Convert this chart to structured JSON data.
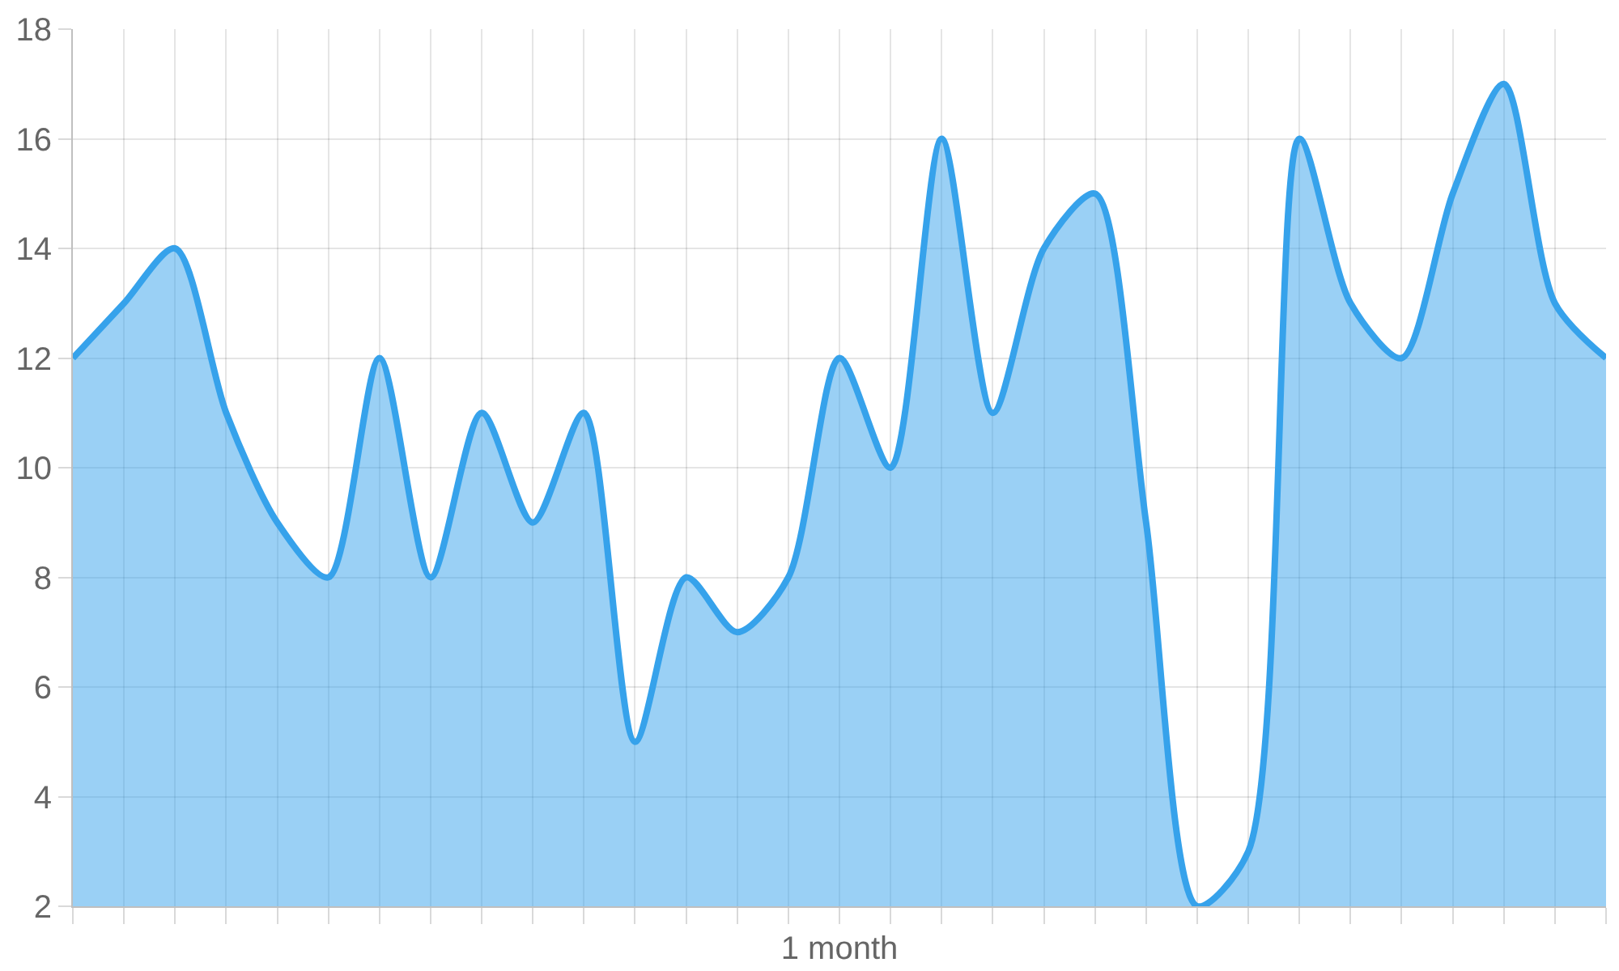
{
  "chart_data": {
    "type": "area",
    "xlabel": "1 month",
    "categories": [
      null,
      null,
      null,
      null,
      null,
      null,
      null,
      null,
      null,
      null,
      null,
      null,
      null,
      null,
      null,
      null,
      null,
      null,
      null,
      null,
      null,
      null,
      null,
      null,
      null,
      null,
      null,
      null,
      null,
      null,
      null
    ],
    "series": [
      {
        "color": "#36a2eb",
        "values": [
          12,
          13,
          14,
          11,
          9,
          8,
          12,
          8,
          11,
          9,
          11,
          5,
          8,
          7,
          8,
          12,
          10,
          16,
          11,
          14,
          15,
          9,
          2,
          3,
          16,
          13,
          12,
          15,
          17,
          13,
          12
        ]
      }
    ],
    "ylim": [
      2,
      18
    ],
    "yticks": [
      2,
      4,
      6,
      8,
      10,
      12,
      14,
      16,
      18
    ],
    "grid": true,
    "legend": false,
    "marker": "none",
    "line_style": "solid",
    "tick_labels": "y"
  }
}
